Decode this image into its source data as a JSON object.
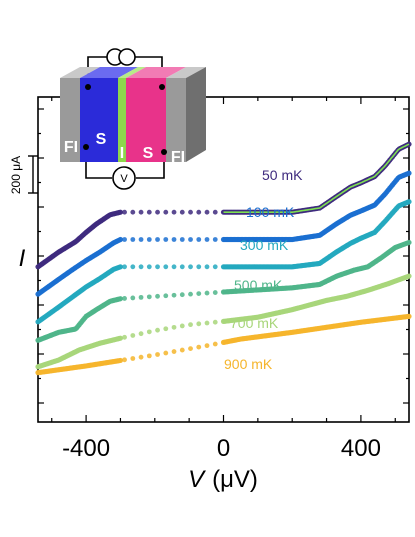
{
  "chart_data": {
    "type": "scatter",
    "xlabel_symbol": "V",
    "xlabel_unit": "(μV)",
    "ylabel": "I",
    "xlim": [
      -540,
      540
    ],
    "x_ticks": [
      -400,
      0,
      400
    ],
    "x_tick_labels": [
      "-400",
      "0",
      "400"
    ],
    "scale_bar_label": "200 μA",
    "legend_placement": "inline labels on each curve",
    "grid": false,
    "series": [
      {
        "name": "50 mK",
        "color": "#3e2a7e",
        "offset": 140,
        "gap": [
          -300,
          0
        ],
        "points": [
          [
            -540,
            -130
          ],
          [
            -480,
            -95
          ],
          [
            -430,
            -70
          ],
          [
            -400,
            -48
          ],
          [
            -370,
            -28
          ],
          [
            -330,
            -6
          ],
          [
            -300,
            0
          ],
          [
            0,
            0
          ],
          [
            200,
            0
          ],
          [
            280,
            10
          ],
          [
            330,
            38
          ],
          [
            370,
            60
          ],
          [
            400,
            70
          ],
          [
            440,
            85
          ],
          [
            470,
            110
          ],
          [
            510,
            150
          ],
          [
            540,
            162
          ]
        ]
      },
      {
        "name": "100 mK",
        "color": "#1a6fd1",
        "offset": 75,
        "gap": [
          -300,
          0
        ],
        "points": [
          [
            -540,
            -130
          ],
          [
            -480,
            -95
          ],
          [
            -440,
            -72
          ],
          [
            -400,
            -50
          ],
          [
            -360,
            -30
          ],
          [
            -320,
            -8
          ],
          [
            -300,
            0
          ],
          [
            0,
            0
          ],
          [
            200,
            0
          ],
          [
            280,
            10
          ],
          [
            330,
            38
          ],
          [
            370,
            58
          ],
          [
            400,
            68
          ],
          [
            440,
            82
          ],
          [
            470,
            108
          ],
          [
            510,
            148
          ],
          [
            540,
            158
          ]
        ]
      },
      {
        "name": "300 mK",
        "color": "#24a9bf",
        "offset": 10,
        "gap": [
          -300,
          0
        ],
        "points": [
          [
            -540,
            -131
          ],
          [
            -480,
            -96
          ],
          [
            -440,
            -72
          ],
          [
            -400,
            -48
          ],
          [
            -360,
            -28
          ],
          [
            -320,
            -6
          ],
          [
            -300,
            0
          ],
          [
            0,
            0
          ],
          [
            200,
            0
          ],
          [
            280,
            8
          ],
          [
            330,
            36
          ],
          [
            370,
            56
          ],
          [
            400,
            68
          ],
          [
            440,
            82
          ],
          [
            470,
            108
          ],
          [
            510,
            145
          ],
          [
            540,
            155
          ]
        ]
      },
      {
        "name": "500 mK",
        "color": "#4fb58a",
        "offset": -50,
        "gap": [
          -300,
          0
        ],
        "points": [
          [
            -540,
            -115
          ],
          [
            -480,
            -96
          ],
          [
            -430,
            -88
          ],
          [
            -400,
            -58
          ],
          [
            -370,
            -42
          ],
          [
            -330,
            -22
          ],
          [
            -300,
            -16
          ],
          [
            0,
            0
          ],
          [
            200,
            10
          ],
          [
            280,
            18
          ],
          [
            330,
            38
          ],
          [
            380,
            52
          ],
          [
            420,
            60
          ],
          [
            460,
            82
          ],
          [
            500,
            106
          ],
          [
            540,
            118
          ]
        ]
      },
      {
        "name": "700 mK",
        "color": "#a8d67a",
        "offset": -120,
        "gap": [
          -300,
          0
        ],
        "points": [
          [
            -540,
            -108
          ],
          [
            -480,
            -92
          ],
          [
            -420,
            -68
          ],
          [
            -360,
            -52
          ],
          [
            -300,
            -40
          ],
          [
            -200,
            -22
          ],
          [
            -100,
            -8
          ],
          [
            0,
            0
          ],
          [
            100,
            10
          ],
          [
            200,
            28
          ],
          [
            300,
            50
          ],
          [
            360,
            60
          ],
          [
            420,
            74
          ],
          [
            480,
            90
          ],
          [
            540,
            108
          ]
        ]
      },
      {
        "name": "900 mK",
        "color": "#f5b52c",
        "offset": -170,
        "gap": [
          -300,
          0
        ],
        "points": [
          [
            -540,
            -72
          ],
          [
            -400,
            -56
          ],
          [
            -200,
            -30
          ],
          [
            -50,
            -8
          ],
          [
            0,
            0
          ],
          [
            50,
            8
          ],
          [
            200,
            24
          ],
          [
            400,
            48
          ],
          [
            540,
            62
          ]
        ]
      }
    ],
    "fit_line": {
      "color": "#7ee052",
      "series": "50 mK"
    },
    "schematic": {
      "layers": [
        "FI",
        "S",
        "I",
        "S",
        "FI"
      ],
      "colors": {
        "FI": "#9a9a9a",
        "S_left": "#2b2bd9",
        "I": "#8ed64c",
        "S_right": "#e8338a"
      },
      "voltmeter_symbol": "V"
    }
  }
}
